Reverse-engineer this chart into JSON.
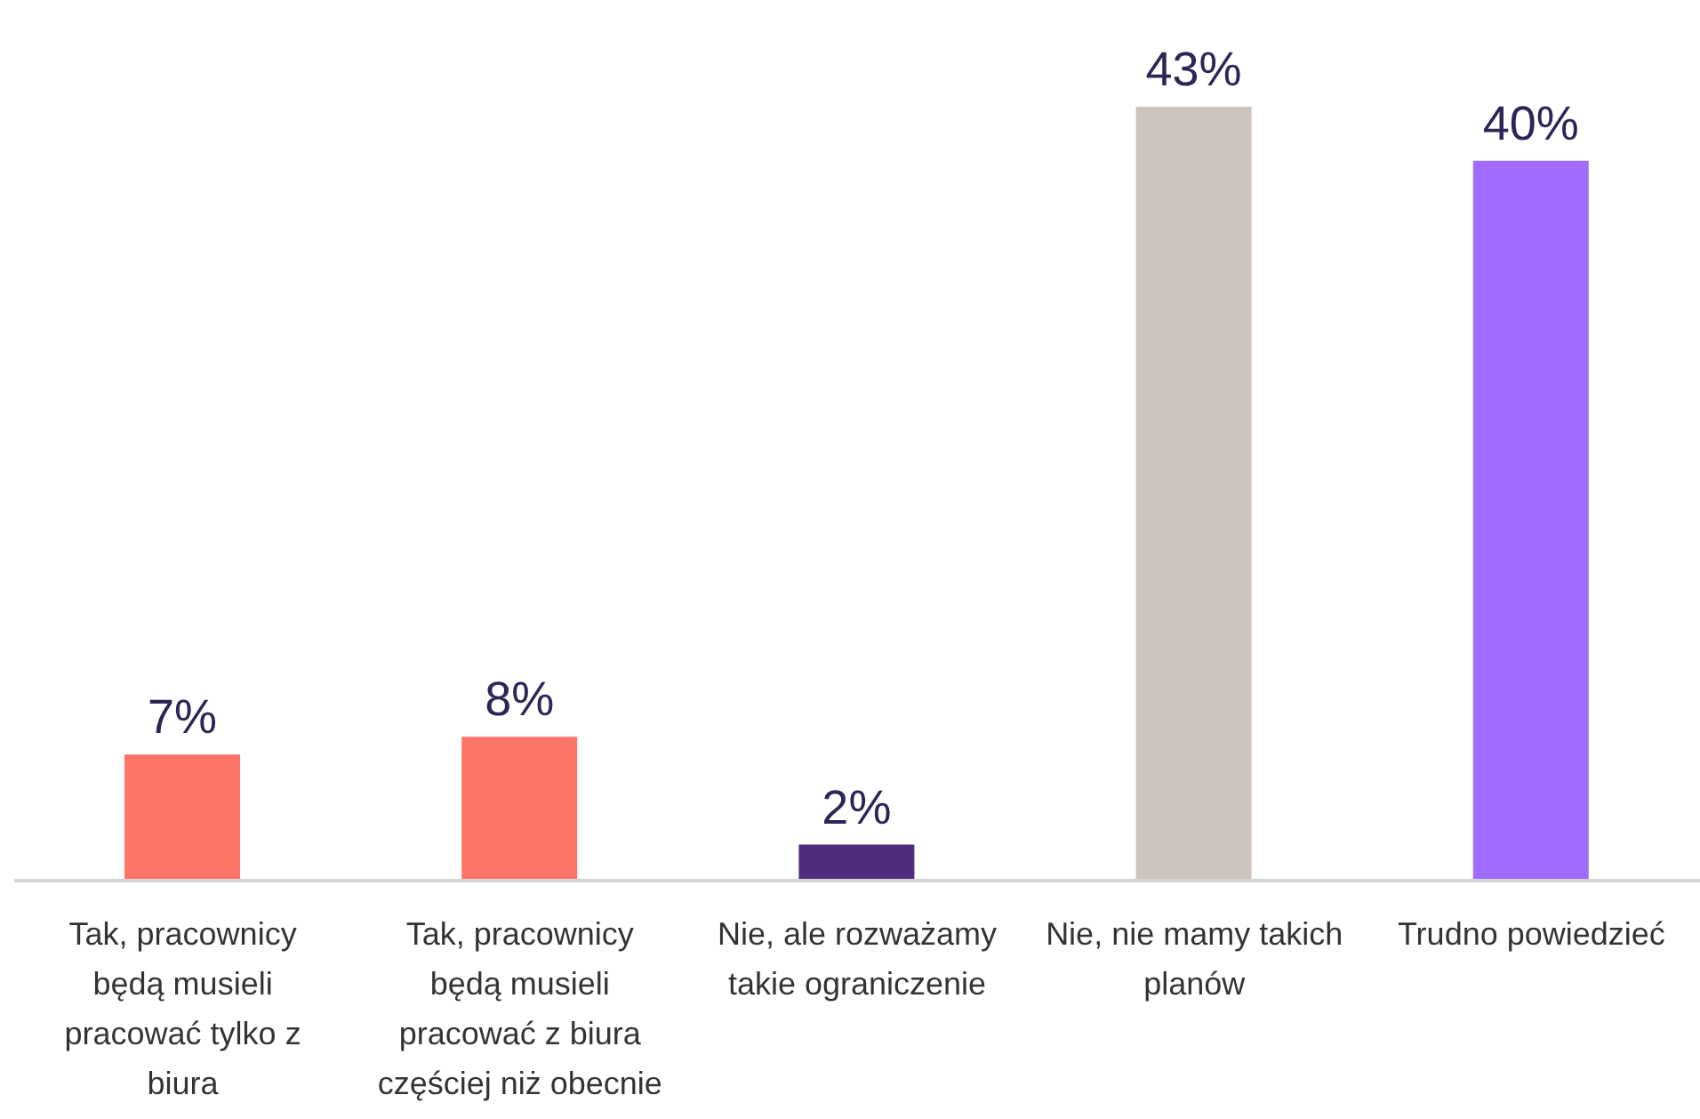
{
  "chart_data": {
    "type": "bar",
    "categories": [
      "Tak, pracownicy będą musieli pracować tylko z biura",
      "Tak, pracownicy będą musieli pracować z biura częściej niż obecnie",
      "Nie, ale rozważamy takie ograniczenie",
      "Nie, nie mamy takich planów",
      "Trudno powiedzieć"
    ],
    "values": [
      7,
      8,
      2,
      43,
      40
    ],
    "colors": [
      "#ff7369",
      "#ff7369",
      "#4f2d7f",
      "#cdc4be",
      "#a06bff"
    ],
    "value_labels": [
      "7%",
      "8%",
      "2%",
      "43%",
      "40%"
    ],
    "tick_labels": "x"
  }
}
